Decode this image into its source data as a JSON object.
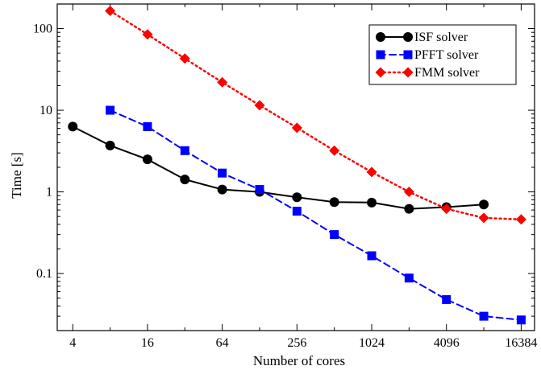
{
  "chart_data": {
    "type": "line",
    "xlabel": "Number of cores",
    "ylabel": "Time [s]",
    "x_scale": "log2",
    "y_scale": "log10",
    "xlim": [
      3,
      21000
    ],
    "ylim": [
      0.02,
      200
    ],
    "x_ticks": [
      4,
      16,
      64,
      256,
      1024,
      4096,
      16384
    ],
    "x_tick_labels": [
      "4",
      "16",
      "64",
      "256",
      "1024",
      "4096",
      "16384"
    ],
    "y_ticks": [
      0.1,
      1,
      10,
      100
    ],
    "y_tick_labels": [
      "0.1",
      "1",
      "10",
      "100"
    ],
    "grid": false,
    "legend_position": "top-right",
    "series": [
      {
        "name": "ISF solver",
        "color": "#000000",
        "marker": "circle",
        "line_style": "solid",
        "x": [
          4,
          8,
          16,
          32,
          64,
          128,
          256,
          512,
          1024,
          2048,
          4096,
          8192
        ],
        "y": [
          6.3,
          3.7,
          2.5,
          1.42,
          1.07,
          1.0,
          0.86,
          0.75,
          0.74,
          0.62,
          0.65,
          0.7
        ]
      },
      {
        "name": "PFFT solver",
        "color": "#0000ff",
        "marker": "square",
        "line_style": "dashed",
        "x": [
          8,
          16,
          32,
          64,
          128,
          256,
          512,
          1024,
          2048,
          4096,
          8192,
          16384
        ],
        "y": [
          10,
          6.3,
          3.2,
          1.7,
          1.07,
          0.58,
          0.3,
          0.165,
          0.088,
          0.048,
          0.03,
          0.027
        ]
      },
      {
        "name": "FMM solver",
        "color": "#ff0000",
        "marker": "diamond",
        "line_style": "dotted",
        "x": [
          8,
          16,
          32,
          64,
          128,
          256,
          512,
          1024,
          2048,
          4096,
          8192,
          16384
        ],
        "y": [
          165,
          85,
          43,
          22,
          11.5,
          6.1,
          3.2,
          1.75,
          1.0,
          0.62,
          0.48,
          0.46
        ]
      }
    ]
  }
}
